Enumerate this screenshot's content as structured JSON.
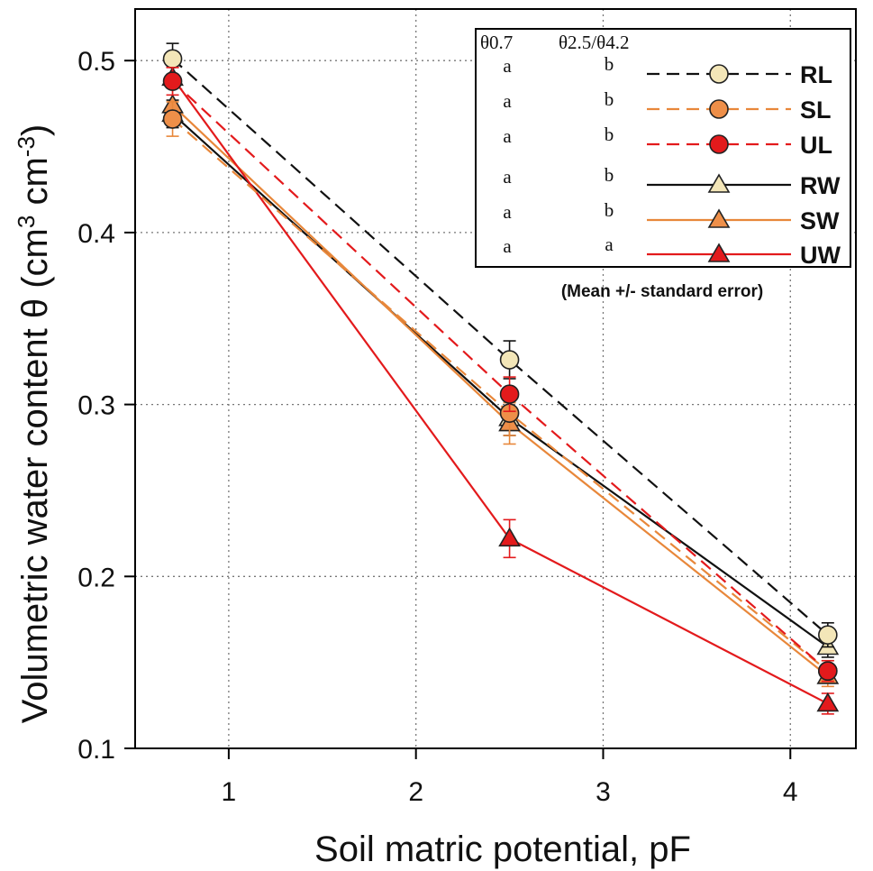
{
  "chart_data": {
    "type": "line",
    "xlabel": "Soil matric potential, pF",
    "ylabel_main": "Volumetric water content θ (cm",
    "ylabel_sup1": "3",
    "ylabel_mid": " cm",
    "ylabel_sup2": "-3",
    "ylabel_close": ")",
    "xlim": [
      0.5,
      4.35
    ],
    "ylim": [
      0.1,
      0.53
    ],
    "xticks": [
      1,
      2,
      3,
      4
    ],
    "xtick_labels": [
      "1",
      "2",
      "3",
      "4"
    ],
    "yticks": [
      0.1,
      0.2,
      0.3,
      0.4,
      0.5
    ],
    "ytick_labels": [
      "0.1",
      "0.2",
      "0.3",
      "0.4",
      "0.5"
    ],
    "grid": true,
    "x": [
      0.7,
      2.5,
      4.2
    ],
    "legend": {
      "placement": "top-right",
      "header_col1": "θ0.7",
      "header_col2": "θ2.5/θ4.2",
      "note": "(Mean +/- standard error)"
    },
    "series": [
      {
        "name": "RL",
        "values": [
          0.501,
          0.326,
          0.166
        ],
        "errors": [
          0.009,
          0.011,
          0.007
        ],
        "color": "#111111",
        "dash": true,
        "marker": "circle",
        "fill": "#f3e6b8",
        "stat_col1": "a",
        "stat_col2": "b"
      },
      {
        "name": "SL",
        "values": [
          0.466,
          0.295,
          0.145
        ],
        "errors": [
          0.01,
          0.013,
          0.006
        ],
        "color": "#e8873a",
        "dash": true,
        "marker": "circle",
        "fill": "#ee8f49",
        "stat_col1": "a",
        "stat_col2": "b"
      },
      {
        "name": "UL",
        "values": [
          0.488,
          0.306,
          0.145
        ],
        "errors": [
          0.008,
          0.01,
          0.006
        ],
        "color": "#e31a1c",
        "dash": true,
        "marker": "circle",
        "fill": "#e31a1c",
        "stat_col1": "a",
        "stat_col2": "b"
      },
      {
        "name": "RW",
        "values": [
          0.469,
          0.292,
          0.159
        ],
        "errors": [
          0.008,
          0.01,
          0.006
        ],
        "color": "#111111",
        "dash": false,
        "marker": "triangle",
        "fill": "#f3e6b8",
        "stat_col1": "a",
        "stat_col2": "b"
      },
      {
        "name": "SW",
        "values": [
          0.474,
          0.289,
          0.142
        ],
        "errors": [
          0.01,
          0.012,
          0.006
        ],
        "color": "#e8873a",
        "dash": false,
        "marker": "triangle",
        "fill": "#ee8f49",
        "stat_col1": "a",
        "stat_col2": "b"
      },
      {
        "name": "UW",
        "values": [
          0.49,
          0.222,
          0.126
        ],
        "errors": [
          0.006,
          0.011,
          0.006
        ],
        "color": "#e31a1c",
        "dash": false,
        "marker": "triangle",
        "fill": "#e31a1c",
        "stat_col1": "a",
        "stat_col2": "a"
      }
    ]
  }
}
